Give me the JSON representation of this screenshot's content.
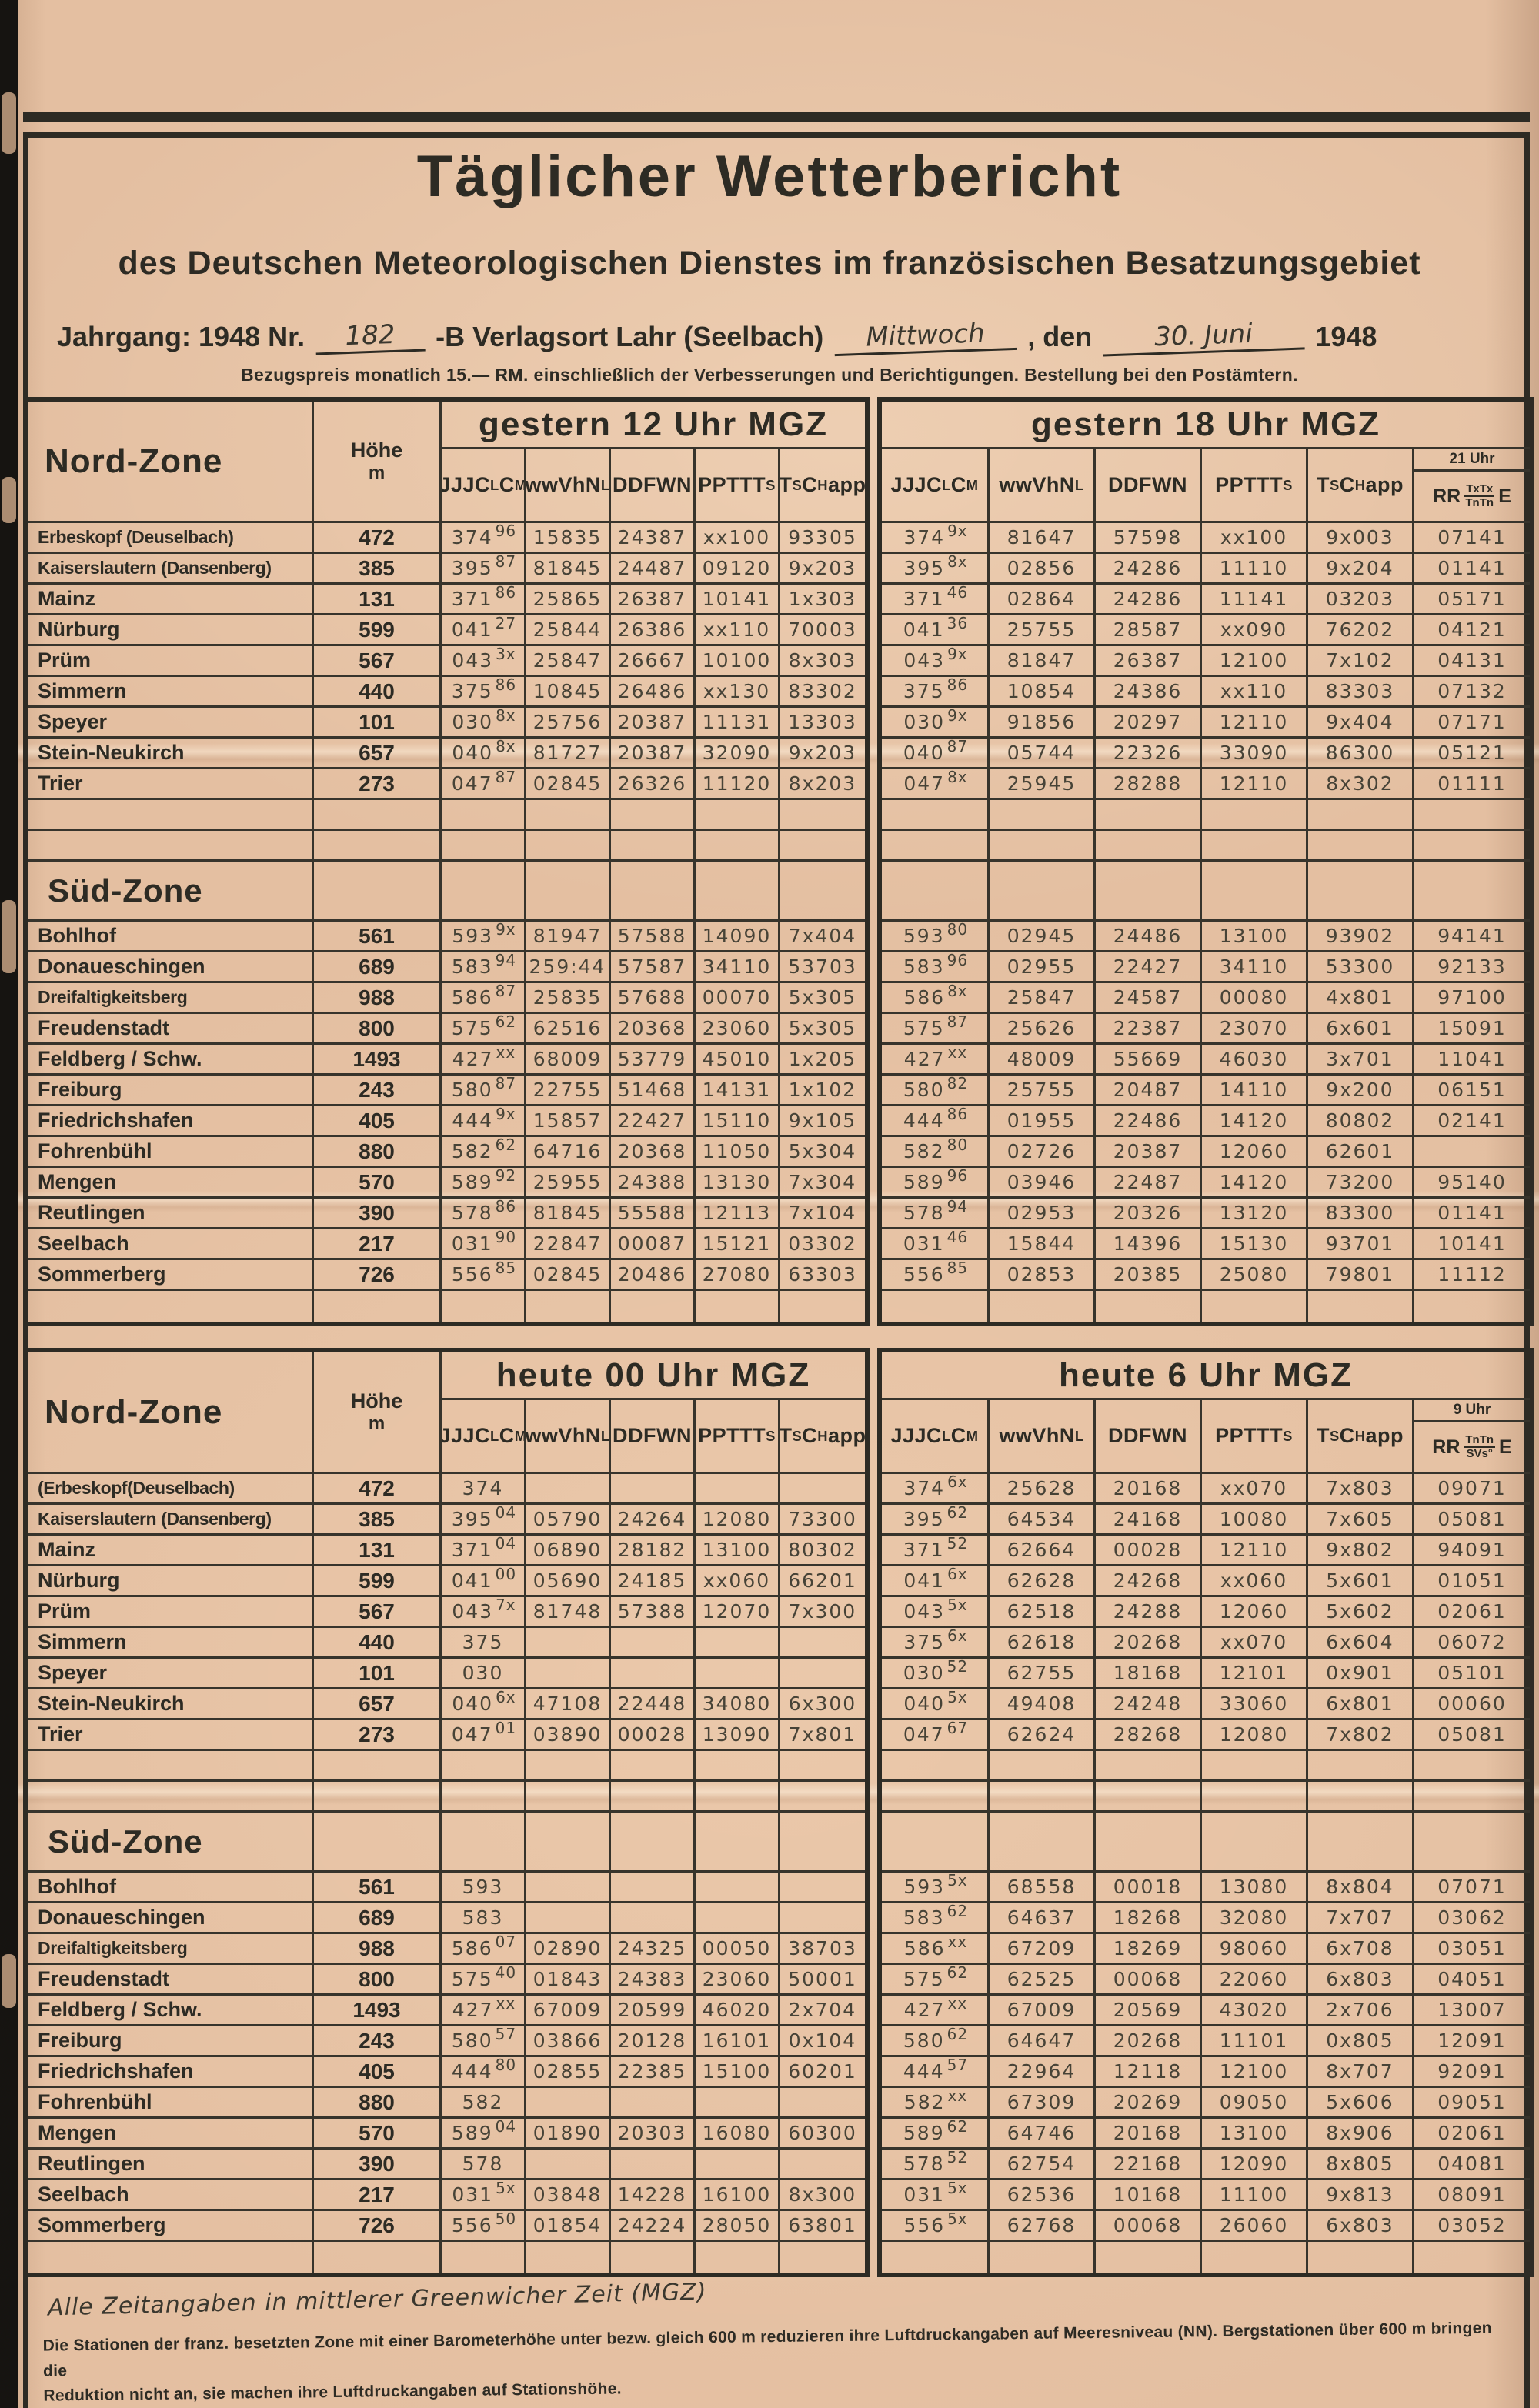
{
  "page": {
    "title": "Täglicher Wetterbericht",
    "subtitle": "des Deutschen Meteorologischen Dienstes im französischen Besatzungsgebiet",
    "issue": {
      "pre": "Jahrgang: 1948 Nr.",
      "nr": "182",
      "mid": "-B Verlagsort Lahr (Seelbach)",
      "weekday": "Mittwoch",
      "den": ", den",
      "date": "30. Juni",
      "year": "1948"
    },
    "price_line": "Bezugspreis monatlich 15.— RM. einschließlich der Verbesserungen und Berichtigungen. Bestellung bei den Postämtern.",
    "footer": {
      "handwritten": "Alle Zeitangaben in mittlerer Greenwicher Zeit (MGZ)",
      "note1": "Die Stationen der franz. besetzten Zone mit einer Barometerhöhe unter bezw. gleich 600 m reduzieren ihre Luftdruckangaben auf Meeresniveau (NN).  Bergstationen über 600 m bringen die",
      "note2": "Reduktion nicht an, sie machen ihre Luftdruckangaben auf Stationshöhe."
    }
  },
  "columns": [
    "JJJC_LC_M",
    "wwVhN_L",
    "DDFWN",
    "PPTTT_S",
    "T_SC_H app"
  ],
  "tables": [
    {
      "title_left": "gestern 12 Uhr MGZ",
      "title_right": "gestern 18 Uhr MGZ",
      "zone_label": "Nord-Zone",
      "hoehe_label": "Höhe",
      "hoehe_unit": "m",
      "sued_label": "Süd-Zone",
      "extra": {
        "time": "21 Uhr",
        "rr": "RR",
        "top": "TxTx",
        "bottom": "TnTn",
        "e": "E"
      },
      "nord": [
        {
          "name": "Erbeskopf (Deuselbach)",
          "hoehe": "472",
          "l": [
            "374 96",
            "15835",
            "24387",
            "xx100",
            "93305"
          ],
          "r": [
            "374 9x",
            "81647",
            "57598",
            "xx100",
            "9x003",
            "07141"
          ]
        },
        {
          "name": "Kaiserslautern (Dansenberg)",
          "hoehe": "385",
          "l": [
            "395 87",
            "81845",
            "24487",
            "09120",
            "9x203"
          ],
          "r": [
            "395 8x",
            "02856",
            "24286",
            "11110",
            "9x204",
            "01141"
          ]
        },
        {
          "name": "Mainz",
          "hoehe": "131",
          "l": [
            "371 86",
            "25865",
            "26387",
            "10141",
            "1x303"
          ],
          "r": [
            "371 46",
            "02864",
            "24286",
            "11141",
            "03203",
            "05171"
          ]
        },
        {
          "name": "Nürburg",
          "hoehe": "599",
          "l": [
            "041 27",
            "25844",
            "26386",
            "xx110",
            "70003"
          ],
          "r": [
            "041 36",
            "25755",
            "28587",
            "xx090",
            "76202",
            "04121"
          ]
        },
        {
          "name": "Prüm",
          "hoehe": "567",
          "l": [
            "043 3x",
            "25847",
            "26667",
            "10100",
            "8x303"
          ],
          "r": [
            "043 9x",
            "81847",
            "26387",
            "12100",
            "7x102",
            "04131"
          ]
        },
        {
          "name": "Simmern",
          "hoehe": "440",
          "l": [
            "375 86",
            "10845",
            "26486",
            "xx130",
            "83302"
          ],
          "r": [
            "375 86",
            "10854",
            "24386",
            "xx110",
            "83303",
            "07132"
          ]
        },
        {
          "name": "Speyer",
          "hoehe": "101",
          "l": [
            "030 8x",
            "25756",
            "20387",
            "11131",
            "13303"
          ],
          "r": [
            "030 9x",
            "91856",
            "20297",
            "12110",
            "9x404",
            "07171"
          ]
        },
        {
          "name": "Stein-Neukirch",
          "hoehe": "657",
          "l": [
            "040 8x",
            "81727",
            "20387",
            "32090",
            "9x203"
          ],
          "r": [
            "040 87",
            "05744",
            "22326",
            "33090",
            "86300",
            "05121"
          ]
        },
        {
          "name": "Trier",
          "hoehe": "273",
          "l": [
            "047 87",
            "02845",
            "26326",
            "11120",
            "8x203"
          ],
          "r": [
            "047 8x",
            "25945",
            "28288",
            "12110",
            "8x302",
            "01111"
          ]
        }
      ],
      "sued": [
        {
          "name": "Bohlhof",
          "hoehe": "561",
          "l": [
            "593 9x",
            "81947",
            "57588",
            "14090",
            "7x404"
          ],
          "r": [
            "593 80",
            "02945",
            "24486",
            "13100",
            "93902",
            "94141"
          ]
        },
        {
          "name": "Donaueschingen",
          "hoehe": "689",
          "l": [
            "583 94",
            "259:44",
            "57587",
            "34110",
            "53703"
          ],
          "r": [
            "583 96",
            "02955",
            "22427",
            "34110",
            "53300",
            "92133"
          ]
        },
        {
          "name": "Dreifaltigkeitsberg",
          "hoehe": "988",
          "l": [
            "586 87",
            "25835",
            "57688",
            "00070",
            "5x305"
          ],
          "r": [
            "586 8x",
            "25847",
            "24587",
            "00080",
            "4x801",
            "97100"
          ]
        },
        {
          "name": "Freudenstadt",
          "hoehe": "800",
          "l": [
            "575 62",
            "62516",
            "20368",
            "23060",
            "5x305"
          ],
          "r": [
            "575 87",
            "25626",
            "22387",
            "23070",
            "6x601",
            "15091"
          ]
        },
        {
          "name": "Feldberg / Schw.",
          "hoehe": "1493",
          "l": [
            "427 xx",
            "68009",
            "53779",
            "45010",
            "1x205"
          ],
          "r": [
            "427 xx",
            "48009",
            "55669",
            "46030",
            "3x701",
            "11041"
          ]
        },
        {
          "name": "Freiburg",
          "hoehe": "243",
          "l": [
            "580 87",
            "22755",
            "51468",
            "14131",
            "1x102"
          ],
          "r": [
            "580 82",
            "25755",
            "20487",
            "14110",
            "9x200",
            "06151"
          ]
        },
        {
          "name": "Friedrichshafen",
          "hoehe": "405",
          "l": [
            "444 9x",
            "15857",
            "22427",
            "15110",
            "9x105"
          ],
          "r": [
            "444 86",
            "01955",
            "22486",
            "14120",
            "80802",
            "02141"
          ]
        },
        {
          "name": "Fohrenbühl",
          "hoehe": "880",
          "l": [
            "582 62",
            "64716",
            "20368",
            "11050",
            "5x304"
          ],
          "r": [
            "582 80",
            "02726",
            "20387",
            "12060",
            "62601",
            ""
          ]
        },
        {
          "name": "Mengen",
          "hoehe": "570",
          "l": [
            "589 92",
            "25955",
            "24388",
            "13130",
            "7x304"
          ],
          "r": [
            "589 96",
            "03946",
            "22487",
            "14120",
            "73200",
            "95140"
          ]
        },
        {
          "name": "Reutlingen",
          "hoehe": "390",
          "l": [
            "578 86",
            "81845",
            "55588",
            "12113",
            "7x104"
          ],
          "r": [
            "578 94",
            "02953",
            "20326",
            "13120",
            "83300",
            "01141"
          ]
        },
        {
          "name": "Seelbach",
          "hoehe": "217",
          "l": [
            "031 90",
            "22847",
            "00087",
            "15121",
            "03302"
          ],
          "r": [
            "031 46",
            "15844",
            "14396",
            "15130",
            "93701",
            "10141"
          ]
        },
        {
          "name": "Sommerberg",
          "hoehe": "726",
          "l": [
            "556 85",
            "02845",
            "20486",
            "27080",
            "63303"
          ],
          "r": [
            "556 85",
            "02853",
            "20385",
            "25080",
            "79801",
            "11112"
          ]
        }
      ]
    },
    {
      "title_left": "heute 00 Uhr MGZ",
      "title_right": "heute 6 Uhr MGZ",
      "zone_label": "Nord-Zone",
      "hoehe_label": "Höhe",
      "hoehe_unit": "m",
      "sued_label": "Süd-Zone",
      "extra": {
        "time": "9 Uhr",
        "rr": "RR",
        "top": "TnTn",
        "bottom": "SVs°",
        "e": "E"
      },
      "nord": [
        {
          "name": "(Erbeskopf(Deuselbach)",
          "hoehe": "472",
          "l": [
            "374",
            "",
            "",
            "",
            ""
          ],
          "r": [
            "374 6x",
            "25628",
            "20168",
            "xx070",
            "7x803",
            "09071"
          ]
        },
        {
          "name": "Kaiserslautern (Dansenberg)",
          "hoehe": "385",
          "l": [
            "395 04",
            "05790",
            "24264",
            "12080",
            "73300"
          ],
          "r": [
            "395 62",
            "64534",
            "24168",
            "10080",
            "7x605",
            "05081"
          ]
        },
        {
          "name": "Mainz",
          "hoehe": "131",
          "l": [
            "371 04",
            "06890",
            "28182",
            "13100",
            "80302"
          ],
          "r": [
            "371 52",
            "62664",
            "00028",
            "12110",
            "9x802",
            "94091"
          ]
        },
        {
          "name": "Nürburg",
          "hoehe": "599",
          "l": [
            "041 00",
            "05690",
            "24185",
            "xx060",
            "66201"
          ],
          "r": [
            "041 6x",
            "62628",
            "24268",
            "xx060",
            "5x601",
            "01051"
          ]
        },
        {
          "name": "Prüm",
          "hoehe": "567",
          "l": [
            "043 7x",
            "81748",
            "57388",
            "12070",
            "7x300"
          ],
          "r": [
            "043 5x",
            "62518",
            "24288",
            "12060",
            "5x602",
            "02061"
          ]
        },
        {
          "name": "Simmern",
          "hoehe": "440",
          "l": [
            "375",
            "",
            "",
            "",
            ""
          ],
          "r": [
            "375 6x",
            "62618",
            "20268",
            "xx070",
            "6x604",
            "06072"
          ]
        },
        {
          "name": "Speyer",
          "hoehe": "101",
          "l": [
            "030",
            "",
            "",
            "",
            ""
          ],
          "r": [
            "030 52",
            "62755",
            "18168",
            "12101",
            "0x901",
            "05101"
          ]
        },
        {
          "name": "Stein-Neukirch",
          "hoehe": "657",
          "l": [
            "040 6x",
            "47108",
            "22448",
            "34080",
            "6x300"
          ],
          "r": [
            "040 5x",
            "49408",
            "24248",
            "33060",
            "6x801",
            "00060"
          ]
        },
        {
          "name": "Trier",
          "hoehe": "273",
          "l": [
            "047 01",
            "03890",
            "00028",
            "13090",
            "7x801"
          ],
          "r": [
            "047 67",
            "62624",
            "28268",
            "12080",
            "7x802",
            "05081"
          ]
        }
      ],
      "sued": [
        {
          "name": "Bohlhof",
          "hoehe": "561",
          "l": [
            "593",
            "",
            "",
            "",
            ""
          ],
          "r": [
            "593 5x",
            "68558",
            "00018",
            "13080",
            "8x804",
            "07071"
          ]
        },
        {
          "name": "Donaueschingen",
          "hoehe": "689",
          "l": [
            "583",
            "",
            "",
            "",
            ""
          ],
          "r": [
            "583 62",
            "64637",
            "18268",
            "32080",
            "7x707",
            "03062"
          ]
        },
        {
          "name": "Dreifaltigkeitsberg",
          "hoehe": "988",
          "l": [
            "586 07",
            "02890",
            "24325",
            "00050",
            "38703"
          ],
          "r": [
            "586 xx",
            "67209",
            "18269",
            "98060",
            "6x708",
            "03051"
          ]
        },
        {
          "name": "Freudenstadt",
          "hoehe": "800",
          "l": [
            "575 40",
            "01843",
            "24383",
            "23060",
            "50001"
          ],
          "r": [
            "575 62",
            "62525",
            "00068",
            "22060",
            "6x803",
            "04051"
          ]
        },
        {
          "name": "Feldberg / Schw.",
          "hoehe": "1493",
          "l": [
            "427 xx",
            "67009",
            "20599",
            "46020",
            "2x704"
          ],
          "r": [
            "427 xx",
            "67009",
            "20569",
            "43020",
            "2x706",
            "13007"
          ]
        },
        {
          "name": "Freiburg",
          "hoehe": "243",
          "l": [
            "580 57",
            "03866",
            "20128",
            "16101",
            "0x104"
          ],
          "r": [
            "580 62",
            "64647",
            "20268",
            "11101",
            "0x805",
            "12091"
          ]
        },
        {
          "name": "Friedrichshafen",
          "hoehe": "405",
          "l": [
            "444 80",
            "02855",
            "22385",
            "15100",
            "60201"
          ],
          "r": [
            "444 57",
            "22964",
            "12118",
            "12100",
            "8x707",
            "92091"
          ]
        },
        {
          "name": "Fohrenbühl",
          "hoehe": "880",
          "l": [
            "582",
            "",
            "",
            "",
            ""
          ],
          "r": [
            "582 xx",
            "67309",
            "20269",
            "09050",
            "5x606",
            "09051"
          ]
        },
        {
          "name": "Mengen",
          "hoehe": "570",
          "l": [
            "589 04",
            "01890",
            "20303",
            "16080",
            "60300"
          ],
          "r": [
            "589 62",
            "64746",
            "20168",
            "13100",
            "8x906",
            "02061"
          ]
        },
        {
          "name": "Reutlingen",
          "hoehe": "390",
          "l": [
            "578",
            "",
            "",
            "",
            ""
          ],
          "r": [
            "578 52",
            "62754",
            "22168",
            "12090",
            "8x805",
            "04081"
          ]
        },
        {
          "name": "Seelbach",
          "hoehe": "217",
          "l": [
            "031 5x",
            "03848",
            "14228",
            "16100",
            "8x300"
          ],
          "r": [
            "031 5x",
            "62536",
            "10168",
            "11100",
            "9x813",
            "08091"
          ]
        },
        {
          "name": "Sommerberg",
          "hoehe": "726",
          "l": [
            "556 50",
            "01854",
            "24224",
            "28050",
            "63801"
          ],
          "r": [
            "556 5x",
            "62768",
            "00068",
            "26060",
            "6x803",
            "03052"
          ]
        }
      ]
    }
  ]
}
